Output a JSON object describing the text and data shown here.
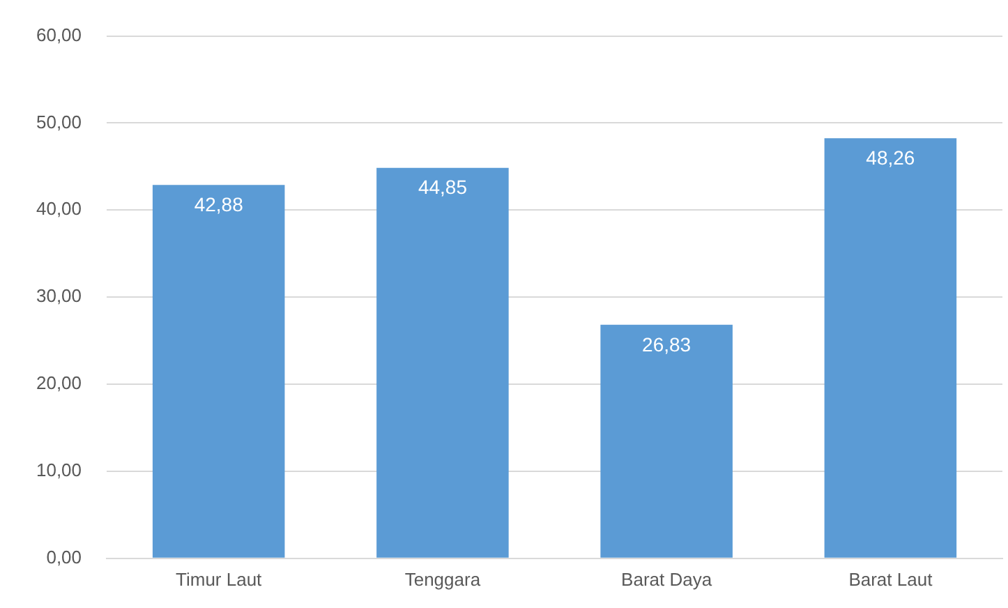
{
  "chart_data": {
    "type": "bar",
    "categories": [
      "Timur Laut",
      "Tenggara",
      "Barat Daya",
      "Barat Laut"
    ],
    "values": [
      42.88,
      44.85,
      26.83,
      48.26
    ],
    "color": "#5b9bd5",
    "value_labels": [
      "42,88",
      "44,85",
      "26,83",
      "48,26"
    ],
    "ylim": [
      0,
      60
    ],
    "yticks": [
      {
        "value": 0,
        "label": "0,00"
      },
      {
        "value": 10,
        "label": "10,00"
      },
      {
        "value": 20,
        "label": "20,00"
      },
      {
        "value": 30,
        "label": "30,00"
      },
      {
        "value": 40,
        "label": "40,00"
      },
      {
        "value": 50,
        "label": "50,00"
      },
      {
        "value": 60,
        "label": "60,00"
      }
    ],
    "grid": "y",
    "legend": false
  }
}
